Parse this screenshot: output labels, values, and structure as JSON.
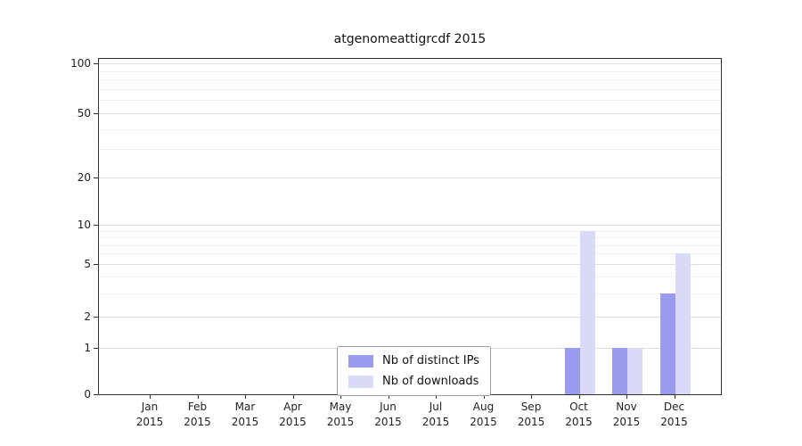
{
  "title": "atgenomeattigrcdf 2015",
  "chart_data": {
    "type": "bar",
    "title": "atgenomeattigrcdf 2015",
    "categories": [
      "Jan",
      "Feb",
      "Mar",
      "Apr",
      "May",
      "Jun",
      "Jul",
      "Aug",
      "Sep",
      "Oct",
      "Nov",
      "Dec"
    ],
    "year": "2015",
    "series": [
      {
        "name": "Nb of distinct IPs",
        "color": "#9a9aee",
        "values": [
          0,
          0,
          0,
          0,
          0,
          0,
          0,
          0,
          0,
          1,
          1,
          3
        ]
      },
      {
        "name": "Nb of downloads",
        "color": "#d9d9f8",
        "values": [
          0,
          0,
          0,
          0,
          0,
          0,
          0,
          0,
          0,
          9,
          1,
          6
        ]
      }
    ],
    "yticks": [
      0,
      1,
      2,
      5,
      10,
      20,
      50,
      100
    ],
    "minor_gridlines": [
      3,
      4,
      6,
      7,
      8,
      9,
      30,
      40,
      60,
      70,
      80,
      90
    ],
    "ylim": [
      0,
      100
    ],
    "scale": "symlog",
    "grid": true,
    "legend_position": "bottom-center",
    "xlabel": "",
    "ylabel": ""
  }
}
